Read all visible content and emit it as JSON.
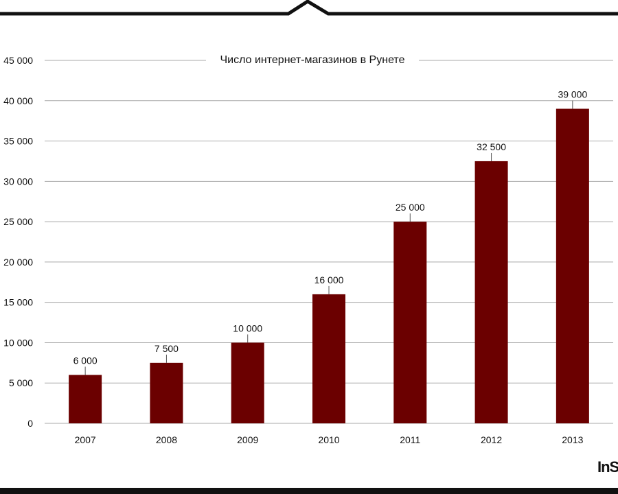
{
  "chart_data": {
    "type": "bar",
    "title": "Число интернет-магазинов в Рунете",
    "categories": [
      "2007",
      "2008",
      "2009",
      "2010",
      "2011",
      "2012",
      "2013"
    ],
    "values": [
      6000,
      7500,
      10000,
      16000,
      25000,
      32500,
      39000
    ],
    "value_labels": [
      "6 000",
      "7 500",
      "10 000",
      "16 000",
      "25 000",
      "32 500",
      "39 000"
    ],
    "y_ticks": [
      0,
      5000,
      10000,
      15000,
      20000,
      25000,
      30000,
      35000,
      40000,
      45000
    ],
    "y_tick_labels": [
      "0",
      "5 000",
      "10 000",
      "15 000",
      "20 000",
      "25 000",
      "30 000",
      "35 000",
      "40 000",
      "45 000"
    ],
    "ylim": [
      0,
      45000
    ],
    "xlabel": "",
    "ylabel": "",
    "grid": true,
    "bar_color": "#6b0000"
  },
  "logo": {
    "text": "InS"
  },
  "colors": {
    "frame": "#111111",
    "grid": "#a8a8a8"
  }
}
